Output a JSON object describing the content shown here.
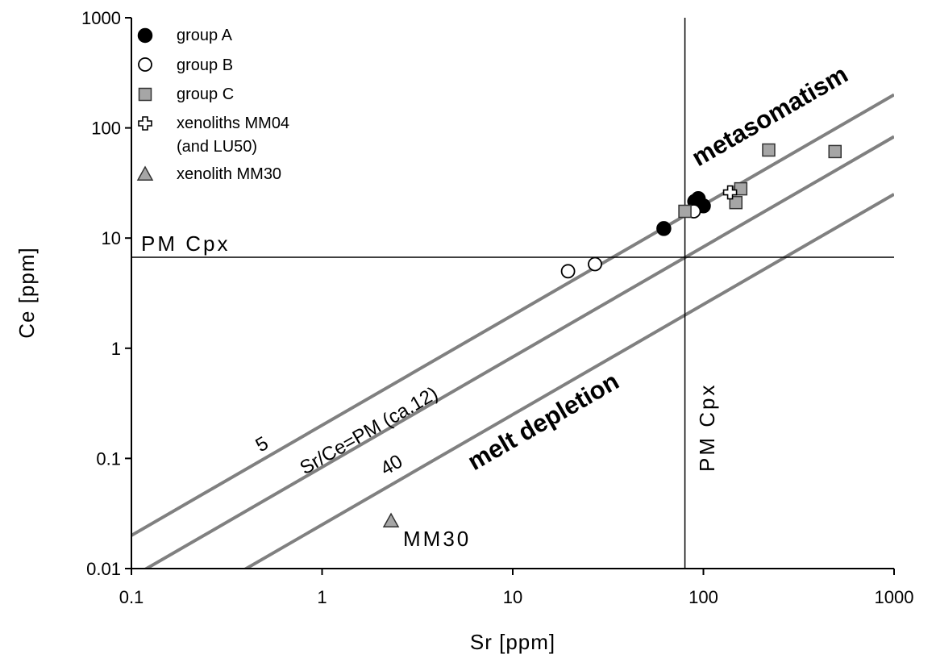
{
  "chart_data": {
    "type": "scatter",
    "title": "",
    "xlabel": "Sr [ppm]",
    "ylabel": "Ce [ppm]",
    "xscale": "log",
    "yscale": "log",
    "xlim": [
      0.1,
      1000
    ],
    "ylim": [
      0.01,
      1000
    ],
    "x_ticks": [
      {
        "value": 0.1,
        "label": "0.1"
      },
      {
        "value": 1,
        "label": "1"
      },
      {
        "value": 10,
        "label": "10"
      },
      {
        "value": 100,
        "label": "100"
      },
      {
        "value": 1000,
        "label": "1000"
      }
    ],
    "y_ticks": [
      {
        "value": 0.01,
        "label": "0.01"
      },
      {
        "value": 0.1,
        "label": "0.1"
      },
      {
        "value": 1,
        "label": "1"
      },
      {
        "value": 10,
        "label": "10"
      },
      {
        "value": 100,
        "label": "100"
      },
      {
        "value": 1000,
        "label": "1000"
      }
    ],
    "grid": false,
    "legend_position": "top-left",
    "series": [
      {
        "name": "group A",
        "marker": "filled-circle",
        "color": "#000000",
        "points": [
          [
            62,
            12.2
          ],
          [
            90,
            21.5
          ],
          [
            94,
            22.8
          ],
          [
            100,
            19.6
          ]
        ]
      },
      {
        "name": "group B",
        "marker": "open-circle",
        "color": "#ffffff",
        "points": [
          [
            19.5,
            5.0
          ],
          [
            27,
            5.8
          ],
          [
            89,
            17.5
          ]
        ]
      },
      {
        "name": "group C",
        "marker": "square",
        "color": "#a6a6a6",
        "points": [
          [
            80,
            17.5
          ],
          [
            148,
            21.0
          ],
          [
            157,
            28.0
          ],
          [
            220,
            63.0
          ],
          [
            490,
            61.0
          ]
        ]
      },
      {
        "name": "xenoliths MM04",
        "name_line2": "(and LU50)",
        "marker": "cross",
        "color": "#ffffff",
        "points": [
          [
            138,
            26.0
          ]
        ]
      },
      {
        "name": "xenolith MM30",
        "marker": "triangle",
        "color": "#a6a6a6",
        "points": [
          [
            2.3,
            0.027
          ]
        ]
      }
    ],
    "ratio_lines": [
      {
        "label": "5",
        "ratio": 5
      },
      {
        "label": "Sr/Ce=PM (ca.12)",
        "ratio": 12
      },
      {
        "label": "40",
        "ratio": 40
      }
    ],
    "line_color": "#808080",
    "reference_lines": {
      "horizontal": {
        "label": "PM Cpx",
        "ce": 6.7
      },
      "vertical": {
        "label": "PM Cpx",
        "sr": 80
      }
    },
    "annotations": {
      "upper": "metasomatism",
      "lower": "melt depletion",
      "point_label": "MM30"
    }
  }
}
